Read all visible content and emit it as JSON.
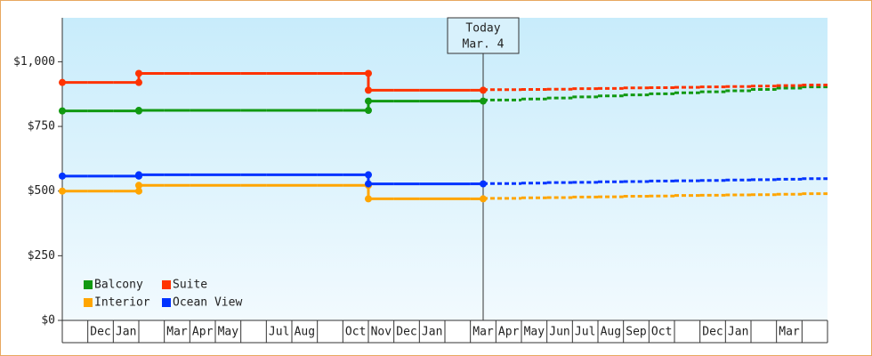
{
  "chart_data": {
    "type": "step",
    "categories": [
      null,
      "Dec",
      "Jan",
      null,
      "Mar",
      "Apr",
      "May",
      null,
      "Jul",
      "Aug",
      null,
      "Oct",
      "Nov",
      "Dec",
      "Jan",
      null,
      "Mar",
      "Apr",
      "May",
      "Jun",
      "Jul",
      "Aug",
      "Sep",
      "Oct",
      null,
      "Dec",
      "Jan",
      null,
      "Mar",
      null
    ],
    "series": [
      {
        "name": "Balcony",
        "color": "#119911",
        "values": [
          810,
          810,
          810,
          812,
          812,
          812,
          812,
          812,
          812,
          812,
          812,
          812,
          848,
          848,
          848,
          848,
          848,
          852,
          856,
          860,
          864,
          868,
          872,
          876,
          880,
          884,
          888,
          893,
          898,
          903
        ]
      },
      {
        "name": "Suite",
        "color": "#ff3300",
        "values": [
          920,
          920,
          920,
          955,
          955,
          955,
          955,
          955,
          955,
          955,
          955,
          955,
          890,
          890,
          890,
          890,
          890,
          892,
          893,
          894,
          896,
          897,
          899,
          900,
          901,
          903,
          904,
          906,
          908,
          910
        ]
      },
      {
        "name": "Interior",
        "color": "#ffa500",
        "values": [
          500,
          500,
          500,
          522,
          522,
          522,
          522,
          522,
          522,
          522,
          522,
          522,
          470,
          470,
          470,
          470,
          470,
          472,
          474,
          475,
          477,
          478,
          480,
          481,
          483,
          484,
          485,
          486,
          488,
          490
        ]
      },
      {
        "name": "Ocean View",
        "color": "#0033ff",
        "values": [
          558,
          558,
          558,
          563,
          563,
          563,
          563,
          563,
          563,
          563,
          563,
          563,
          528,
          528,
          528,
          528,
          528,
          529,
          531,
          533,
          534,
          536,
          537,
          539,
          540,
          541,
          543,
          544,
          546,
          548
        ]
      }
    ],
    "annotation": {
      "title": "Today",
      "date": "Mar. 4"
    },
    "today_index": 16,
    "ylim": [
      0,
      1170
    ],
    "yticks": [
      {
        "value": 0,
        "label": "$0"
      },
      {
        "value": 250,
        "label": "$250"
      },
      {
        "value": 500,
        "label": "$500"
      },
      {
        "value": 750,
        "label": "$750"
      },
      {
        "value": 1000,
        "label": "$1,000"
      }
    ],
    "legend": "bottom-left"
  }
}
